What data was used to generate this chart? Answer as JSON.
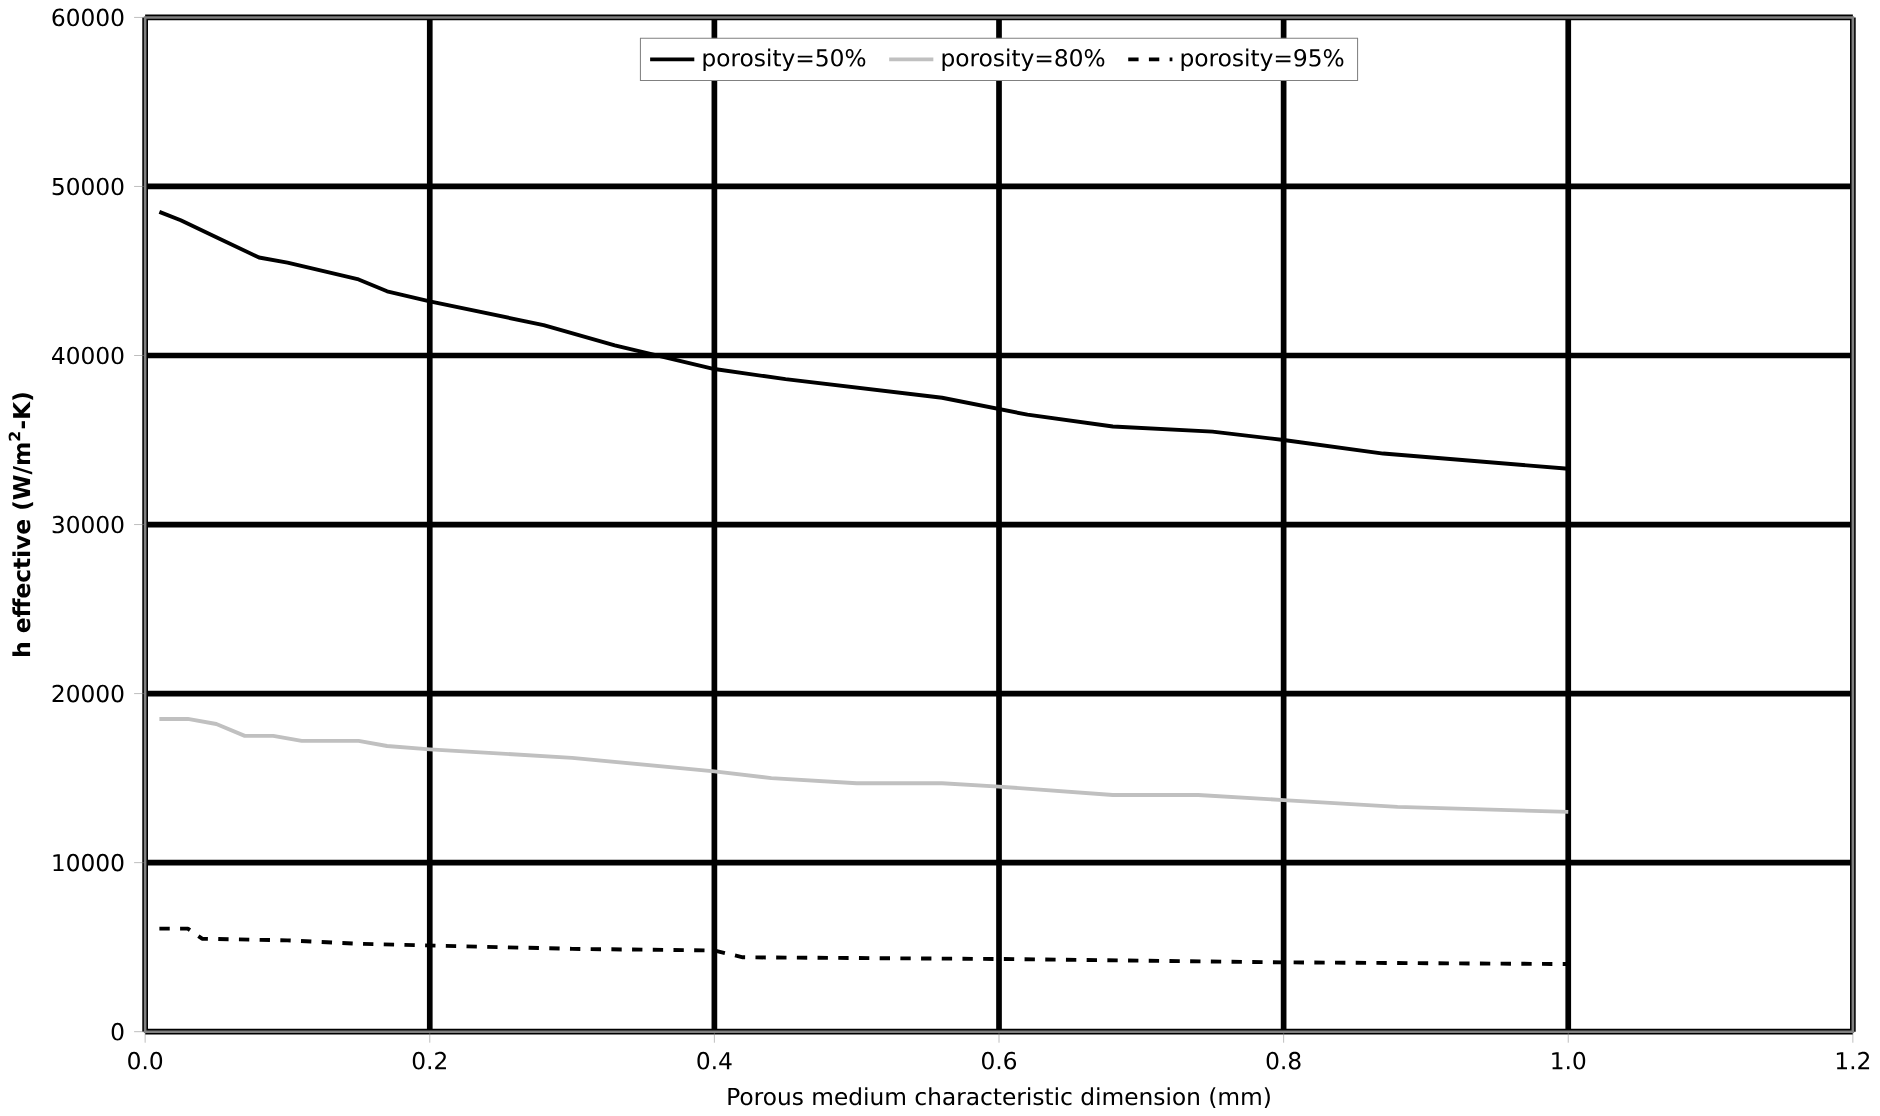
{
  "chart_data": {
    "type": "line",
    "xlabel": "Porous medium characteristic dimension (mm)",
    "ylabel": "h effective (W/m$^{2}$-K)",
    "xlim": [
      0,
      1.2
    ],
    "xticks": [
      {
        "value": 0,
        "label": "0.0"
      },
      {
        "value": 0.2,
        "label": "0.2"
      },
      {
        "value": 0.4,
        "label": "0.4"
      },
      {
        "value": 0.6,
        "label": "0.6"
      },
      {
        "value": 0.8,
        "label": "0.8"
      },
      {
        "value": 1.0,
        "label": "1.0"
      },
      {
        "value": 1.2,
        "label": "1.2"
      }
    ],
    "ylim": [
      0,
      60000
    ],
    "yticks": [
      0,
      10000,
      20000,
      30000,
      40000,
      50000,
      60000
    ],
    "grid": true,
    "legend": "top",
    "marker": "none",
    "series": [
      {
        "name": "porosity=50%",
        "color": "#000000",
        "line_style": "solid",
        "x": [
          0.01,
          0.025,
          0.05,
          0.08,
          0.1,
          0.15,
          0.17,
          0.2,
          0.28,
          0.33,
          0.4,
          0.45,
          0.56,
          0.62,
          0.68,
          0.75,
          0.8,
          0.87,
          1.0
        ],
        "values": [
          48500,
          48000,
          47000,
          45800,
          45500,
          44500,
          43800,
          43200,
          41800,
          40600,
          39200,
          38600,
          37500,
          36500,
          35800,
          35500,
          35000,
          34200,
          33300
        ]
      },
      {
        "name": "porosity=80%",
        "color": "#c0c0c0",
        "line_style": "solid",
        "x": [
          0.01,
          0.03,
          0.05,
          0.07,
          0.09,
          0.11,
          0.15,
          0.17,
          0.2,
          0.3,
          0.4,
          0.44,
          0.5,
          0.56,
          0.6,
          0.68,
          0.74,
          0.8,
          0.88,
          1.0
        ],
        "values": [
          18500,
          18500,
          18200,
          17500,
          17500,
          17200,
          17200,
          16900,
          16700,
          16200,
          15400,
          15000,
          14700,
          14700,
          14500,
          14000,
          14000,
          13700,
          13300,
          13000
        ]
      },
      {
        "name": "porosity=95%",
        "color": "#000000",
        "line_style": "dashed",
        "x": [
          0.01,
          0.03,
          0.04,
          0.1,
          0.15,
          0.3,
          0.4,
          0.42,
          0.6,
          0.8,
          1.0
        ],
        "values": [
          6100,
          6100,
          5500,
          5400,
          5200,
          4900,
          4800,
          4400,
          4300,
          4100,
          4000
        ]
      }
    ]
  }
}
